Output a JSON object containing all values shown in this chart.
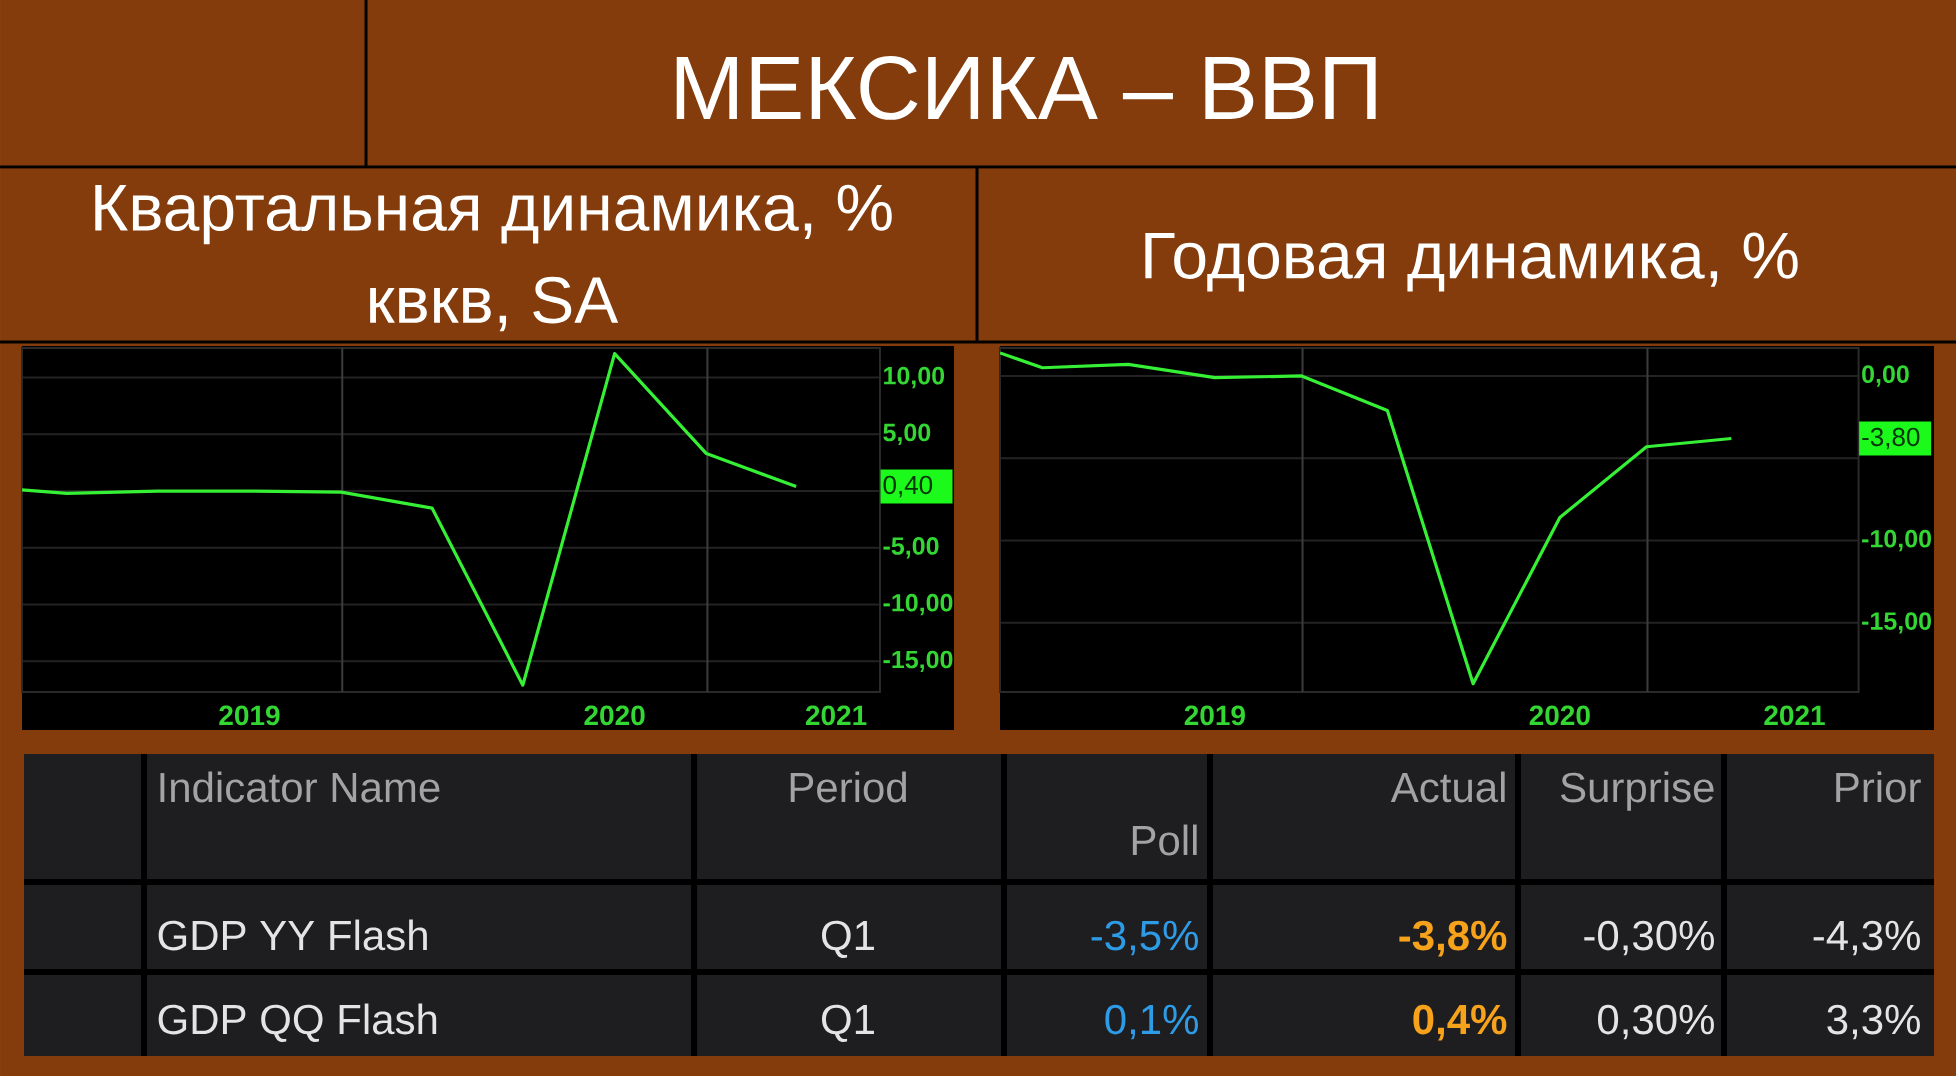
{
  "chart_data": [
    {
      "type": "other",
      "title": "МЕКСИКА – ВВП"
    },
    {
      "type": "line",
      "title": "Квартальная динамика, % квкв, SA",
      "x": [
        "2019-02-14",
        "2019-03-31",
        "2019-06-30",
        "2019-09-30",
        "2019-12-31",
        "2020-03-31",
        "2020-06-30",
        "2020-09-30",
        "2020-12-31",
        "2021-03-31"
      ],
      "series": [
        {
          "color": "#35f035",
          "values": [
            0.1,
            -0.2,
            0.0,
            0.0,
            -0.1,
            -1.5,
            -17.1,
            12.1,
            3.3,
            0.4
          ]
        }
      ],
      "xlim": [
        "2019-02-14",
        "2021-06-23"
      ],
      "ylim": [
        -17.7,
        12.6
      ],
      "xticks": [
        {
          "value": "2019-09-30",
          "label": "2019"
        },
        {
          "value": "2020-09-30",
          "label": "2020"
        },
        {
          "value": "2021-05-10",
          "label": "2021"
        }
      ],
      "yticks": [
        {
          "value": 10,
          "label": "10,00"
        },
        {
          "value": 5,
          "label": "5,00"
        },
        {
          "value": 0,
          "label": null
        },
        {
          "value": -5,
          "label": "-5,00"
        },
        {
          "value": -10,
          "label": "-10,00"
        },
        {
          "value": -15,
          "label": "-15,00"
        }
      ],
      "grid": "y",
      "ref_lines": [
        {
          "axis": "x",
          "value": "2020-01-01",
          "color": "#3c3c3c"
        },
        {
          "axis": "x",
          "value": "2021-01-01",
          "color": "#3c3c3c"
        }
      ],
      "annotations": [
        "0,40"
      ]
    },
    {
      "type": "line",
      "title": "Годовая динамика, %",
      "x": [
        "2019-02-14",
        "2019-03-31",
        "2019-06-30",
        "2019-09-30",
        "2019-12-31",
        "2020-03-31",
        "2020-06-30",
        "2020-09-30",
        "2020-12-31",
        "2021-03-31"
      ],
      "series": [
        {
          "color": "#35f035",
          "values": [
            1.4,
            0.5,
            0.7,
            -0.1,
            0.0,
            -2.1,
            -18.7,
            -8.6,
            -4.3,
            -3.8
          ]
        }
      ],
      "xlim": [
        "2019-02-14",
        "2021-08-13"
      ],
      "ylim": [
        -19.2,
        1.7
      ],
      "xticks": [
        {
          "value": "2019-09-30",
          "label": "2019"
        },
        {
          "value": "2020-09-30",
          "label": "2020"
        },
        {
          "value": "2021-06-06",
          "label": "2021"
        }
      ],
      "yticks": [
        {
          "value": 0,
          "label": "0,00"
        },
        {
          "value": -5,
          "label": null
        },
        {
          "value": -10,
          "label": "-10,00"
        },
        {
          "value": -15,
          "label": "-15,00"
        }
      ],
      "grid": "y",
      "ref_lines": [
        {
          "axis": "x",
          "value": "2020-01-01",
          "color": "#3c3c3c"
        },
        {
          "axis": "x",
          "value": "2021-01-01",
          "color": "#3c3c3c"
        }
      ],
      "annotations": [
        "-3,80"
      ]
    },
    {
      "type": "other",
      "annotations": [
        "Indicator Name",
        "Period",
        "Poll",
        "Actual",
        "Surprise",
        "Prior",
        "GDP YY Flash",
        "Q1",
        "-3,5%",
        "-3,8%",
        "-0,30%",
        "-4,3%",
        "GDP QQ Flash",
        "Q1",
        "0,1%",
        "0,4%",
        "0,30%",
        "3,3%"
      ]
    }
  ]
}
